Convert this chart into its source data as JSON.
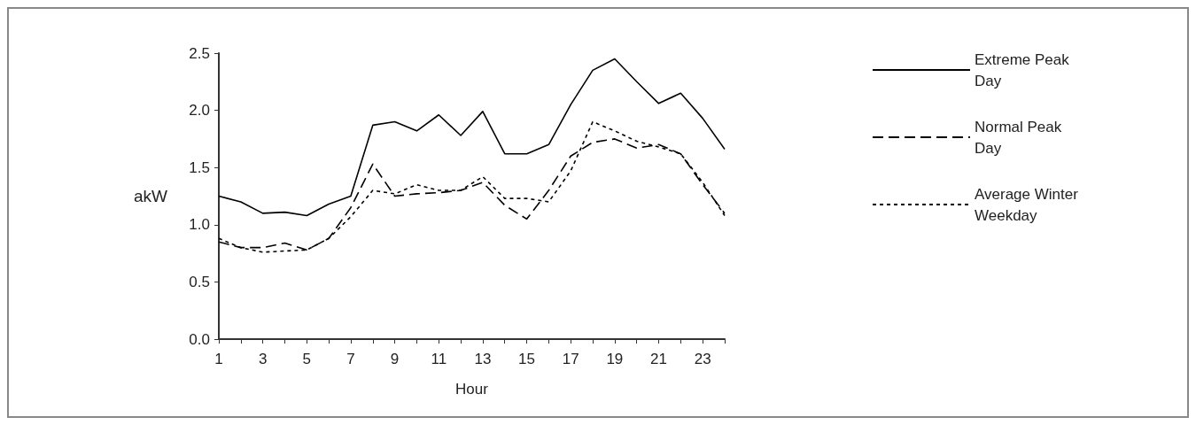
{
  "chart_data": {
    "type": "line",
    "xlabel": "Hour",
    "ylabel": "akW",
    "x": [
      1,
      2,
      3,
      4,
      5,
      6,
      7,
      8,
      9,
      10,
      11,
      12,
      13,
      14,
      15,
      16,
      17,
      18,
      19,
      20,
      21,
      22,
      23,
      24
    ],
    "series": [
      {
        "name": "Extreme Peak Day",
        "color": "#000000",
        "line_style": "solid",
        "values": [
          1.25,
          1.2,
          1.1,
          1.11,
          1.08,
          1.18,
          1.25,
          1.87,
          1.9,
          1.82,
          1.96,
          1.78,
          1.99,
          1.62,
          1.62,
          1.7,
          2.05,
          2.35,
          2.45,
          2.25,
          2.06,
          2.15,
          1.93,
          1.66
        ]
      },
      {
        "name": "Normal Peak Day",
        "color": "#000000",
        "line_style": "dashed",
        "values": [
          0.85,
          0.8,
          0.8,
          0.84,
          0.78,
          0.88,
          1.15,
          1.53,
          1.25,
          1.27,
          1.28,
          1.3,
          1.37,
          1.17,
          1.05,
          1.3,
          1.6,
          1.72,
          1.75,
          1.67,
          1.7,
          1.62,
          1.35,
          1.1
        ]
      },
      {
        "name": "Average Winter Weekday",
        "color": "#000000",
        "line_style": "dotted",
        "values": [
          0.88,
          0.8,
          0.76,
          0.77,
          0.78,
          0.88,
          1.07,
          1.3,
          1.27,
          1.35,
          1.3,
          1.3,
          1.42,
          1.23,
          1.23,
          1.2,
          1.47,
          1.9,
          1.82,
          1.73,
          1.68,
          1.62,
          1.37,
          1.08
        ]
      }
    ],
    "xlim": [
      1,
      24
    ],
    "xticks": [
      1,
      {
        "value": 2,
        "label": null
      },
      3,
      {
        "value": 4,
        "label": null
      },
      5,
      {
        "value": 6,
        "label": null
      },
      7,
      {
        "value": 8,
        "label": null
      },
      9,
      {
        "value": 10,
        "label": null
      },
      11,
      {
        "value": 12,
        "label": null
      },
      13,
      {
        "value": 14,
        "label": null
      },
      15,
      {
        "value": 16,
        "label": null
      },
      17,
      {
        "value": 18,
        "label": null
      },
      19,
      {
        "value": 20,
        "label": null
      },
      21,
      {
        "value": 22,
        "label": null
      },
      23,
      {
        "value": 24,
        "label": null
      }
    ],
    "ylim": [
      0,
      2.5
    ],
    "yticks": [
      {
        "value": 0,
        "label": "0.0"
      },
      {
        "value": 0.5,
        "label": "0.5"
      },
      {
        "value": 1,
        "label": "1.0"
      },
      {
        "value": 1.5,
        "label": "1.5"
      },
      {
        "value": 2,
        "label": "2.0"
      },
      {
        "value": 2.5,
        "label": "2.5"
      }
    ],
    "grid": false,
    "legend": "right",
    "marker": "none"
  }
}
